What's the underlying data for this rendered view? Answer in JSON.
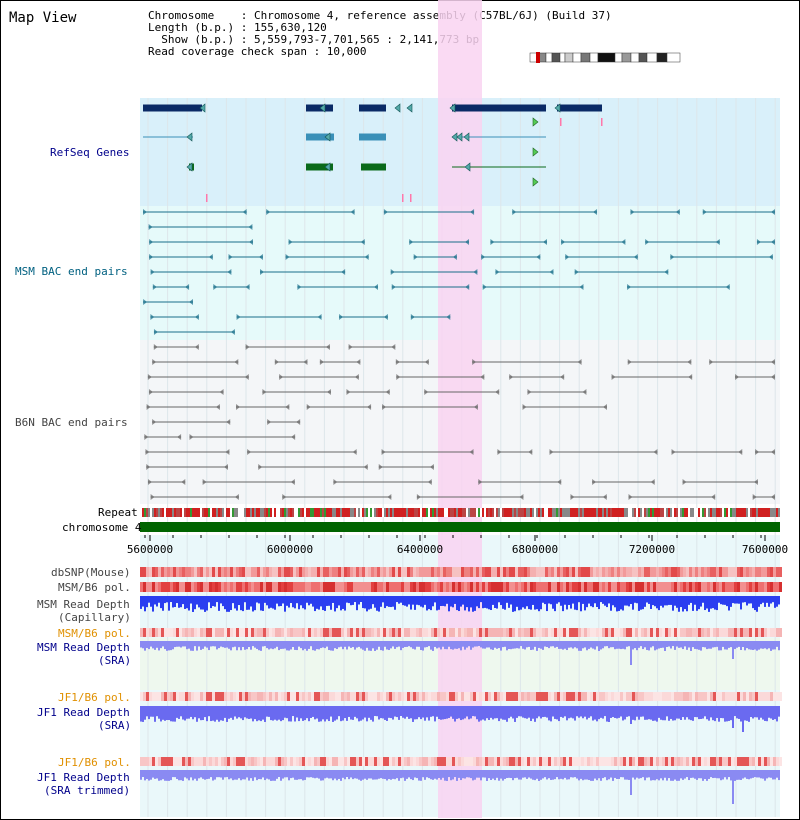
{
  "title": "Map View",
  "info": {
    "chromosome": "Chromosome    : Chromosome 4, reference assembly (C57BL/6J) (Build 37)",
    "length": "Length (b.p.) : 155,630,120",
    "show": "  Show (b.p.) : 5,559,793-7,701,565 : 2,141,773 bp",
    "coverage": "Read coverage check span : 10,000"
  },
  "tracks": {
    "refseq": "RefSeq Genes",
    "msm_bac": "MSM BAC end pairs",
    "b6n_bac": "B6N BAC end pairs",
    "repeat": "Repeat",
    "chromosome": "chromosome 4",
    "dbsnp": "dbSNP(Mouse)",
    "msm_b6_pol_1": "MSM/B6 pol.",
    "msm_read_depth_cap_1": "MSM Read Depth",
    "msm_read_depth_cap_2": "(Capillary)",
    "msm_b6_pol_2": "MSM/B6 pol.",
    "msm_read_depth_sra_1": "MSM Read Depth",
    "msm_read_depth_sra_2": "(SRA)",
    "jf1_b6_pol_1": "JF1/B6 pol.",
    "jf1_read_depth_sra_1": "JF1 Read Depth",
    "jf1_read_depth_sra_2": "(SRA)",
    "jf1_b6_pol_2": "JF1/B6 pol.",
    "jf1_read_depth_trim_1": "JF1 Read Depth",
    "jf1_read_depth_trim_2": "(SRA trimmed)"
  },
  "axis": {
    "ticks": [
      "5600000",
      "6000000",
      "6400000",
      "6800000",
      "7200000",
      "7600000"
    ]
  },
  "colors": {
    "refseq_bg": "#d9f0fa",
    "msm_bg": "#e6fafa",
    "b6n_bg": "#f4f6f8",
    "highlight": "#f9d4f1",
    "chromosome": "#006400",
    "pol_red": "#e03030",
    "depth_blue": "#3333ee",
    "label_blue": "#00008b",
    "label_teal": "#006080",
    "label_orange": "#e09000"
  }
}
